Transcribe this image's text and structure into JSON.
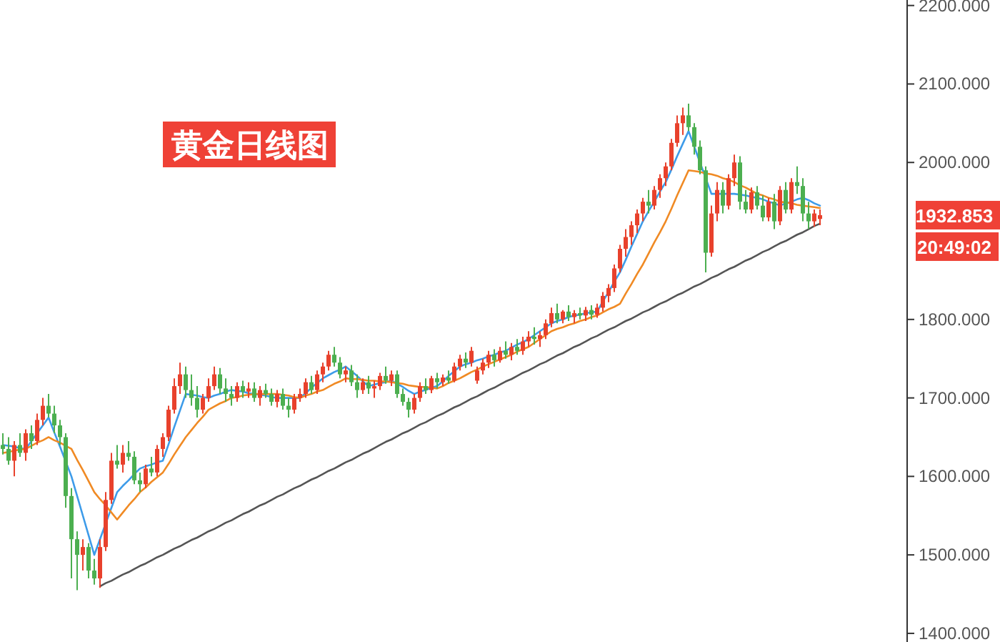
{
  "chart_data": {
    "type": "candlestick",
    "title": "黄金日线图",
    "categories": [
      null,
      null,
      null,
      null,
      null,
      null,
      null,
      null,
      null,
      null,
      null,
      null,
      null,
      null,
      null,
      null,
      null,
      null,
      null,
      null,
      null,
      null,
      null,
      null,
      null,
      null,
      null,
      null,
      null,
      null,
      null,
      null,
      null,
      null,
      null,
      null,
      null,
      null,
      null,
      null,
      null,
      null,
      null,
      null,
      null,
      null,
      null,
      null,
      null,
      null,
      null,
      null,
      null,
      null,
      null,
      null,
      null,
      null,
      null,
      null,
      null,
      null,
      null,
      null,
      null,
      null,
      null,
      null,
      null,
      null,
      null,
      null,
      null,
      null,
      null,
      null,
      null,
      null,
      null,
      null,
      null,
      null,
      null,
      null,
      null,
      null,
      null,
      null,
      null,
      null,
      null,
      null,
      null,
      null,
      null,
      null,
      null,
      null,
      null,
      null,
      null,
      null,
      null,
      null,
      null,
      null,
      null,
      null,
      null,
      null,
      null,
      null,
      null,
      null,
      null,
      null,
      null,
      null,
      null,
      null,
      null,
      null,
      null,
      null,
      null,
      null,
      null,
      null,
      null,
      null,
      null,
      null,
      null,
      null,
      null,
      null,
      null,
      null,
      null,
      null,
      null,
      null,
      null,
      null
    ],
    "ohlc": [
      [
        1640,
        1655,
        1628,
        1635
      ],
      [
        1635,
        1650,
        1615,
        1620
      ],
      [
        1620,
        1645,
        1600,
        1640
      ],
      [
        1640,
        1655,
        1625,
        1630
      ],
      [
        1630,
        1660,
        1620,
        1655
      ],
      [
        1655,
        1665,
        1635,
        1645
      ],
      [
        1645,
        1680,
        1640,
        1672
      ],
      [
        1672,
        1700,
        1665,
        1690
      ],
      [
        1690,
        1705,
        1675,
        1680
      ],
      [
        1680,
        1690,
        1655,
        1665
      ],
      [
        1665,
        1672,
        1640,
        1650
      ],
      [
        1650,
        1655,
        1560,
        1575
      ],
      [
        1575,
        1585,
        1470,
        1520
      ],
      [
        1520,
        1530,
        1455,
        1500
      ],
      [
        1500,
        1520,
        1480,
        1510
      ],
      [
        1510,
        1515,
        1470,
        1480
      ],
      [
        1480,
        1495,
        1462,
        1470
      ],
      [
        1470,
        1520,
        1458,
        1510
      ],
      [
        1510,
        1580,
        1505,
        1570
      ],
      [
        1570,
        1630,
        1565,
        1620
      ],
      [
        1620,
        1640,
        1610,
        1615
      ],
      [
        1615,
        1640,
        1605,
        1630
      ],
      [
        1630,
        1645,
        1620,
        1625
      ],
      [
        1625,
        1632,
        1590,
        1595
      ],
      [
        1595,
        1605,
        1580,
        1590
      ],
      [
        1590,
        1615,
        1585,
        1610
      ],
      [
        1610,
        1625,
        1600,
        1605
      ],
      [
        1605,
        1640,
        1600,
        1635
      ],
      [
        1635,
        1655,
        1625,
        1650
      ],
      [
        1650,
        1690,
        1645,
        1685
      ],
      [
        1685,
        1725,
        1680,
        1715
      ],
      [
        1715,
        1745,
        1705,
        1730
      ],
      [
        1730,
        1740,
        1700,
        1710
      ],
      [
        1710,
        1730,
        1690,
        1700
      ],
      [
        1700,
        1715,
        1675,
        1685
      ],
      [
        1685,
        1705,
        1680,
        1700
      ],
      [
        1700,
        1725,
        1695,
        1715
      ],
      [
        1715,
        1740,
        1710,
        1730
      ],
      [
        1730,
        1738,
        1705,
        1712
      ],
      [
        1712,
        1725,
        1695,
        1705
      ],
      [
        1705,
        1715,
        1690,
        1700
      ],
      [
        1700,
        1720,
        1695,
        1715
      ],
      [
        1715,
        1722,
        1700,
        1708
      ],
      [
        1708,
        1720,
        1700,
        1712
      ],
      [
        1712,
        1720,
        1695,
        1700
      ],
      [
        1700,
        1715,
        1690,
        1710
      ],
      [
        1710,
        1718,
        1700,
        1705
      ],
      [
        1705,
        1712,
        1690,
        1695
      ],
      [
        1695,
        1710,
        1688,
        1705
      ],
      [
        1705,
        1712,
        1685,
        1690
      ],
      [
        1690,
        1700,
        1675,
        1685
      ],
      [
        1685,
        1705,
        1680,
        1700
      ],
      [
        1700,
        1712,
        1695,
        1705
      ],
      [
        1705,
        1725,
        1700,
        1720
      ],
      [
        1720,
        1728,
        1705,
        1710
      ],
      [
        1710,
        1735,
        1705,
        1730
      ],
      [
        1730,
        1745,
        1720,
        1740
      ],
      [
        1740,
        1760,
        1735,
        1755
      ],
      [
        1755,
        1765,
        1740,
        1745
      ],
      [
        1745,
        1752,
        1725,
        1730
      ],
      [
        1730,
        1740,
        1720,
        1735
      ],
      [
        1735,
        1742,
        1715,
        1720
      ],
      [
        1720,
        1730,
        1700,
        1710
      ],
      [
        1710,
        1725,
        1705,
        1720
      ],
      [
        1720,
        1728,
        1705,
        1712
      ],
      [
        1712,
        1722,
        1700,
        1715
      ],
      [
        1715,
        1732,
        1710,
        1728
      ],
      [
        1728,
        1740,
        1718,
        1722
      ],
      [
        1722,
        1735,
        1715,
        1730
      ],
      [
        1730,
        1735,
        1700,
        1705
      ],
      [
        1705,
        1712,
        1690,
        1695
      ],
      [
        1695,
        1700,
        1675,
        1685
      ],
      [
        1685,
        1705,
        1680,
        1700
      ],
      [
        1700,
        1720,
        1695,
        1715
      ],
      [
        1715,
        1725,
        1705,
        1710
      ],
      [
        1710,
        1728,
        1706,
        1725
      ],
      [
        1725,
        1732,
        1712,
        1720
      ],
      [
        1720,
        1730,
        1715,
        1726
      ],
      [
        1726,
        1735,
        1718,
        1722
      ],
      [
        1722,
        1745,
        1720,
        1740
      ],
      [
        1740,
        1755,
        1735,
        1750
      ],
      [
        1750,
        1758,
        1738,
        1745
      ],
      [
        1745,
        1765,
        1740,
        1760
      ],
      [
        1722,
        1740,
        1718,
        1735
      ],
      [
        1735,
        1750,
        1730,
        1745
      ],
      [
        1745,
        1760,
        1738,
        1755
      ],
      [
        1755,
        1762,
        1740,
        1748
      ],
      [
        1748,
        1765,
        1745,
        1760
      ],
      [
        1760,
        1772,
        1750,
        1755
      ],
      [
        1755,
        1770,
        1748,
        1765
      ],
      [
        1765,
        1775,
        1755,
        1760
      ],
      [
        1760,
        1778,
        1755,
        1772
      ],
      [
        1772,
        1785,
        1765,
        1778
      ],
      [
        1778,
        1790,
        1768,
        1775
      ],
      [
        1775,
        1785,
        1765,
        1780
      ],
      [
        1780,
        1800,
        1775,
        1795
      ],
      [
        1795,
        1815,
        1790,
        1808
      ],
      [
        1808,
        1820,
        1795,
        1800
      ],
      [
        1800,
        1812,
        1795,
        1810
      ],
      [
        1810,
        1818,
        1798,
        1803
      ],
      [
        1803,
        1812,
        1795,
        1808
      ],
      [
        1808,
        1815,
        1800,
        1805
      ],
      [
        1805,
        1816,
        1798,
        1812
      ],
      [
        1812,
        1818,
        1800,
        1806
      ],
      [
        1806,
        1820,
        1802,
        1815
      ],
      [
        1815,
        1835,
        1810,
        1830
      ],
      [
        1830,
        1845,
        1822,
        1840
      ],
      [
        1840,
        1870,
        1835,
        1865
      ],
      [
        1865,
        1895,
        1860,
        1890
      ],
      [
        1890,
        1915,
        1880,
        1905
      ],
      [
        1905,
        1925,
        1895,
        1920
      ],
      [
        1920,
        1940,
        1910,
        1935
      ],
      [
        1935,
        1955,
        1925,
        1950
      ],
      [
        1950,
        1965,
        1935,
        1945
      ],
      [
        1945,
        1970,
        1940,
        1965
      ],
      [
        1965,
        1985,
        1955,
        1980
      ],
      [
        1980,
        2000,
        1970,
        1995
      ],
      [
        1995,
        2030,
        1990,
        2025
      ],
      [
        2025,
        2060,
        2020,
        2050
      ],
      [
        2050,
        2070,
        2035,
        2060
      ],
      [
        2060,
        2075,
        2040,
        2045
      ],
      [
        2045,
        2050,
        2010,
        2020
      ],
      [
        2020,
        2028,
        1985,
        1990
      ],
      [
        1990,
        1995,
        1860,
        1885
      ],
      [
        1885,
        1945,
        1880,
        1935
      ],
      [
        1935,
        1975,
        1925,
        1965
      ],
      [
        1965,
        1975,
        1935,
        1945
      ],
      [
        1945,
        1985,
        1940,
        1980
      ],
      [
        1980,
        2010,
        1970,
        2000
      ],
      [
        2000,
        2008,
        1940,
        1950
      ],
      [
        1950,
        1965,
        1935,
        1940
      ],
      [
        1940,
        1968,
        1935,
        1962
      ],
      [
        1962,
        1970,
        1940,
        1945
      ],
      [
        1945,
        1958,
        1925,
        1930
      ],
      [
        1930,
        1955,
        1925,
        1950
      ],
      [
        1950,
        1960,
        1915,
        1925
      ],
      [
        1925,
        1970,
        1920,
        1965
      ],
      [
        1965,
        1975,
        1935,
        1940
      ],
      [
        1940,
        1980,
        1935,
        1975
      ],
      [
        1975,
        1995,
        1960,
        1970
      ],
      [
        1970,
        1980,
        1925,
        1935
      ],
      [
        1935,
        1950,
        1915,
        1925
      ],
      [
        1925,
        1940,
        1918,
        1935
      ],
      [
        1928,
        1940,
        1920,
        1932.853
      ]
    ],
    "series": [
      {
        "type": "line",
        "color": "#3d9be9",
        "values": [
          1640,
          1639,
          1638,
          1636,
          1635,
          1645,
          1655,
          1665,
          1675,
          1656,
          1638,
          1619,
          1600,
          1575,
          1550,
          1525,
          1500,
          1520,
          1540,
          1560,
          1580,
          1588,
          1595,
          1603,
          1610,
          1613,
          1615,
          1618,
          1620,
          1641,
          1663,
          1684,
          1705,
          1704,
          1703,
          1701,
          1700,
          1703,
          1705,
          1708,
          1710,
          1709,
          1708,
          1706,
          1705,
          1704,
          1703,
          1701,
          1700,
          1700,
          1700,
          1700,
          1700,
          1706,
          1713,
          1719,
          1725,
          1729,
          1733,
          1736,
          1740,
          1734,
          1728,
          1721,
          1715,
          1717,
          1719,
          1720,
          1722,
          1718,
          1714,
          1709,
          1705,
          1708,
          1710,
          1713,
          1715,
          1721,
          1728,
          1734,
          1740,
          1743,
          1745,
          1748,
          1750,
          1753,
          1755,
          1758,
          1760,
          1764,
          1768,
          1771,
          1775,
          1780,
          1785,
          1790,
          1795,
          1798,
          1800,
          1803,
          1805,
          1806,
          1808,
          1809,
          1810,
          1823,
          1835,
          1848,
          1860,
          1876,
          1893,
          1909,
          1925,
          1938,
          1950,
          1963,
          1975,
          1991,
          2008,
          2024,
          2040,
          2020,
          2000,
          1980,
          1960,
          1960,
          1960,
          1960,
          1960,
          1959,
          1958,
          1956,
          1955,
          1953,
          1950,
          1948,
          1945,
          1948,
          1950,
          1953,
          1955,
          1952,
          1948,
          1945
        ]
      },
      {
        "type": "line",
        "color": "#f08a24",
        "values": [
          1630,
          1631,
          1633,
          1634,
          1635,
          1639,
          1643,
          1646,
          1650,
          1646,
          1643,
          1639,
          1635,
          1621,
          1608,
          1594,
          1580,
          1571,
          1563,
          1554,
          1545,
          1554,
          1563,
          1571,
          1580,
          1586,
          1593,
          1599,
          1605,
          1616,
          1628,
          1639,
          1650,
          1659,
          1668,
          1676,
          1685,
          1689,
          1693,
          1696,
          1700,
          1701,
          1703,
          1704,
          1705,
          1705,
          1705,
          1705,
          1705,
          1704,
          1703,
          1701,
          1700,
          1703,
          1705,
          1708,
          1710,
          1714,
          1718,
          1721,
          1725,
          1724,
          1724,
          1723,
          1722,
          1722,
          1721,
          1721,
          1720,
          1719,
          1718,
          1716,
          1715,
          1714,
          1714,
          1713,
          1712,
          1715,
          1719,
          1722,
          1725,
          1729,
          1733,
          1736,
          1740,
          1743,
          1746,
          1749,
          1752,
          1755,
          1759,
          1762,
          1765,
          1770,
          1775,
          1780,
          1785,
          1788,
          1790,
          1793,
          1795,
          1798,
          1800,
          1803,
          1805,
          1809,
          1813,
          1816,
          1820,
          1833,
          1845,
          1858,
          1870,
          1884,
          1898,
          1911,
          1925,
          1941,
          1958,
          1974,
          1990,
          1989,
          1988,
          1986,
          1985,
          1983,
          1980,
          1978,
          1975,
          1971,
          1968,
          1964,
          1960,
          1958,
          1955,
          1953,
          1950,
          1949,
          1948,
          1946,
          1945,
          1944,
          1943,
          1942
        ]
      },
      {
        "type": "line",
        "color": "#555555",
        "values": [
          null,
          null,
          null,
          null,
          null,
          null,
          null,
          null,
          null,
          null,
          null,
          null,
          null,
          null,
          null,
          null,
          null,
          1460,
          1464,
          1467,
          1471,
          1475,
          1478,
          1482,
          1486,
          1489,
          1493,
          1497,
          1500,
          1504,
          1508,
          1511,
          1515,
          1519,
          1522,
          1526,
          1530,
          1533,
          1537,
          1541,
          1544,
          1548,
          1552,
          1555,
          1559,
          1563,
          1566,
          1570,
          1574,
          1577,
          1581,
          1585,
          1588,
          1592,
          1596,
          1599,
          1603,
          1607,
          1610,
          1614,
          1618,
          1621,
          1625,
          1629,
          1632,
          1636,
          1640,
          1644,
          1647,
          1651,
          1655,
          1658,
          1662,
          1666,
          1669,
          1673,
          1677,
          1680,
          1684,
          1688,
          1691,
          1695,
          1699,
          1702,
          1706,
          1710,
          1713,
          1717,
          1721,
          1724,
          1728,
          1732,
          1735,
          1739,
          1743,
          1746,
          1750,
          1754,
          1757,
          1761,
          1765,
          1768,
          1772,
          1776,
          1779,
          1783,
          1787,
          1790,
          1794,
          1798,
          1801,
          1805,
          1809,
          1812,
          1816,
          1820,
          1823,
          1827,
          1831,
          1834,
          1838,
          1842,
          1845,
          1849,
          1853,
          1856,
          1860,
          1864,
          1867,
          1871,
          1875,
          1878,
          1882,
          1886,
          1889,
          1893,
          1897,
          1900,
          1904,
          1908,
          1911,
          1915,
          1919,
          1922
        ]
      }
    ],
    "ylim": [
      1389,
      2207
    ],
    "yticks": [
      {
        "value": 1400,
        "label": "1400.000"
      },
      {
        "value": 1500,
        "label": "1500.000"
      },
      {
        "value": 1600,
        "label": "1600.000"
      },
      {
        "value": 1700,
        "label": "1700.000"
      },
      {
        "value": 1800,
        "label": "1800.000"
      },
      {
        "value": 2000,
        "label": "2000.000"
      },
      {
        "value": 2100,
        "label": "2100.000"
      },
      {
        "value": 2200,
        "label": "2200.000"
      }
    ],
    "tick_labels": "y",
    "annotations": [
      "1932.853",
      "20:49:02"
    ]
  }
}
